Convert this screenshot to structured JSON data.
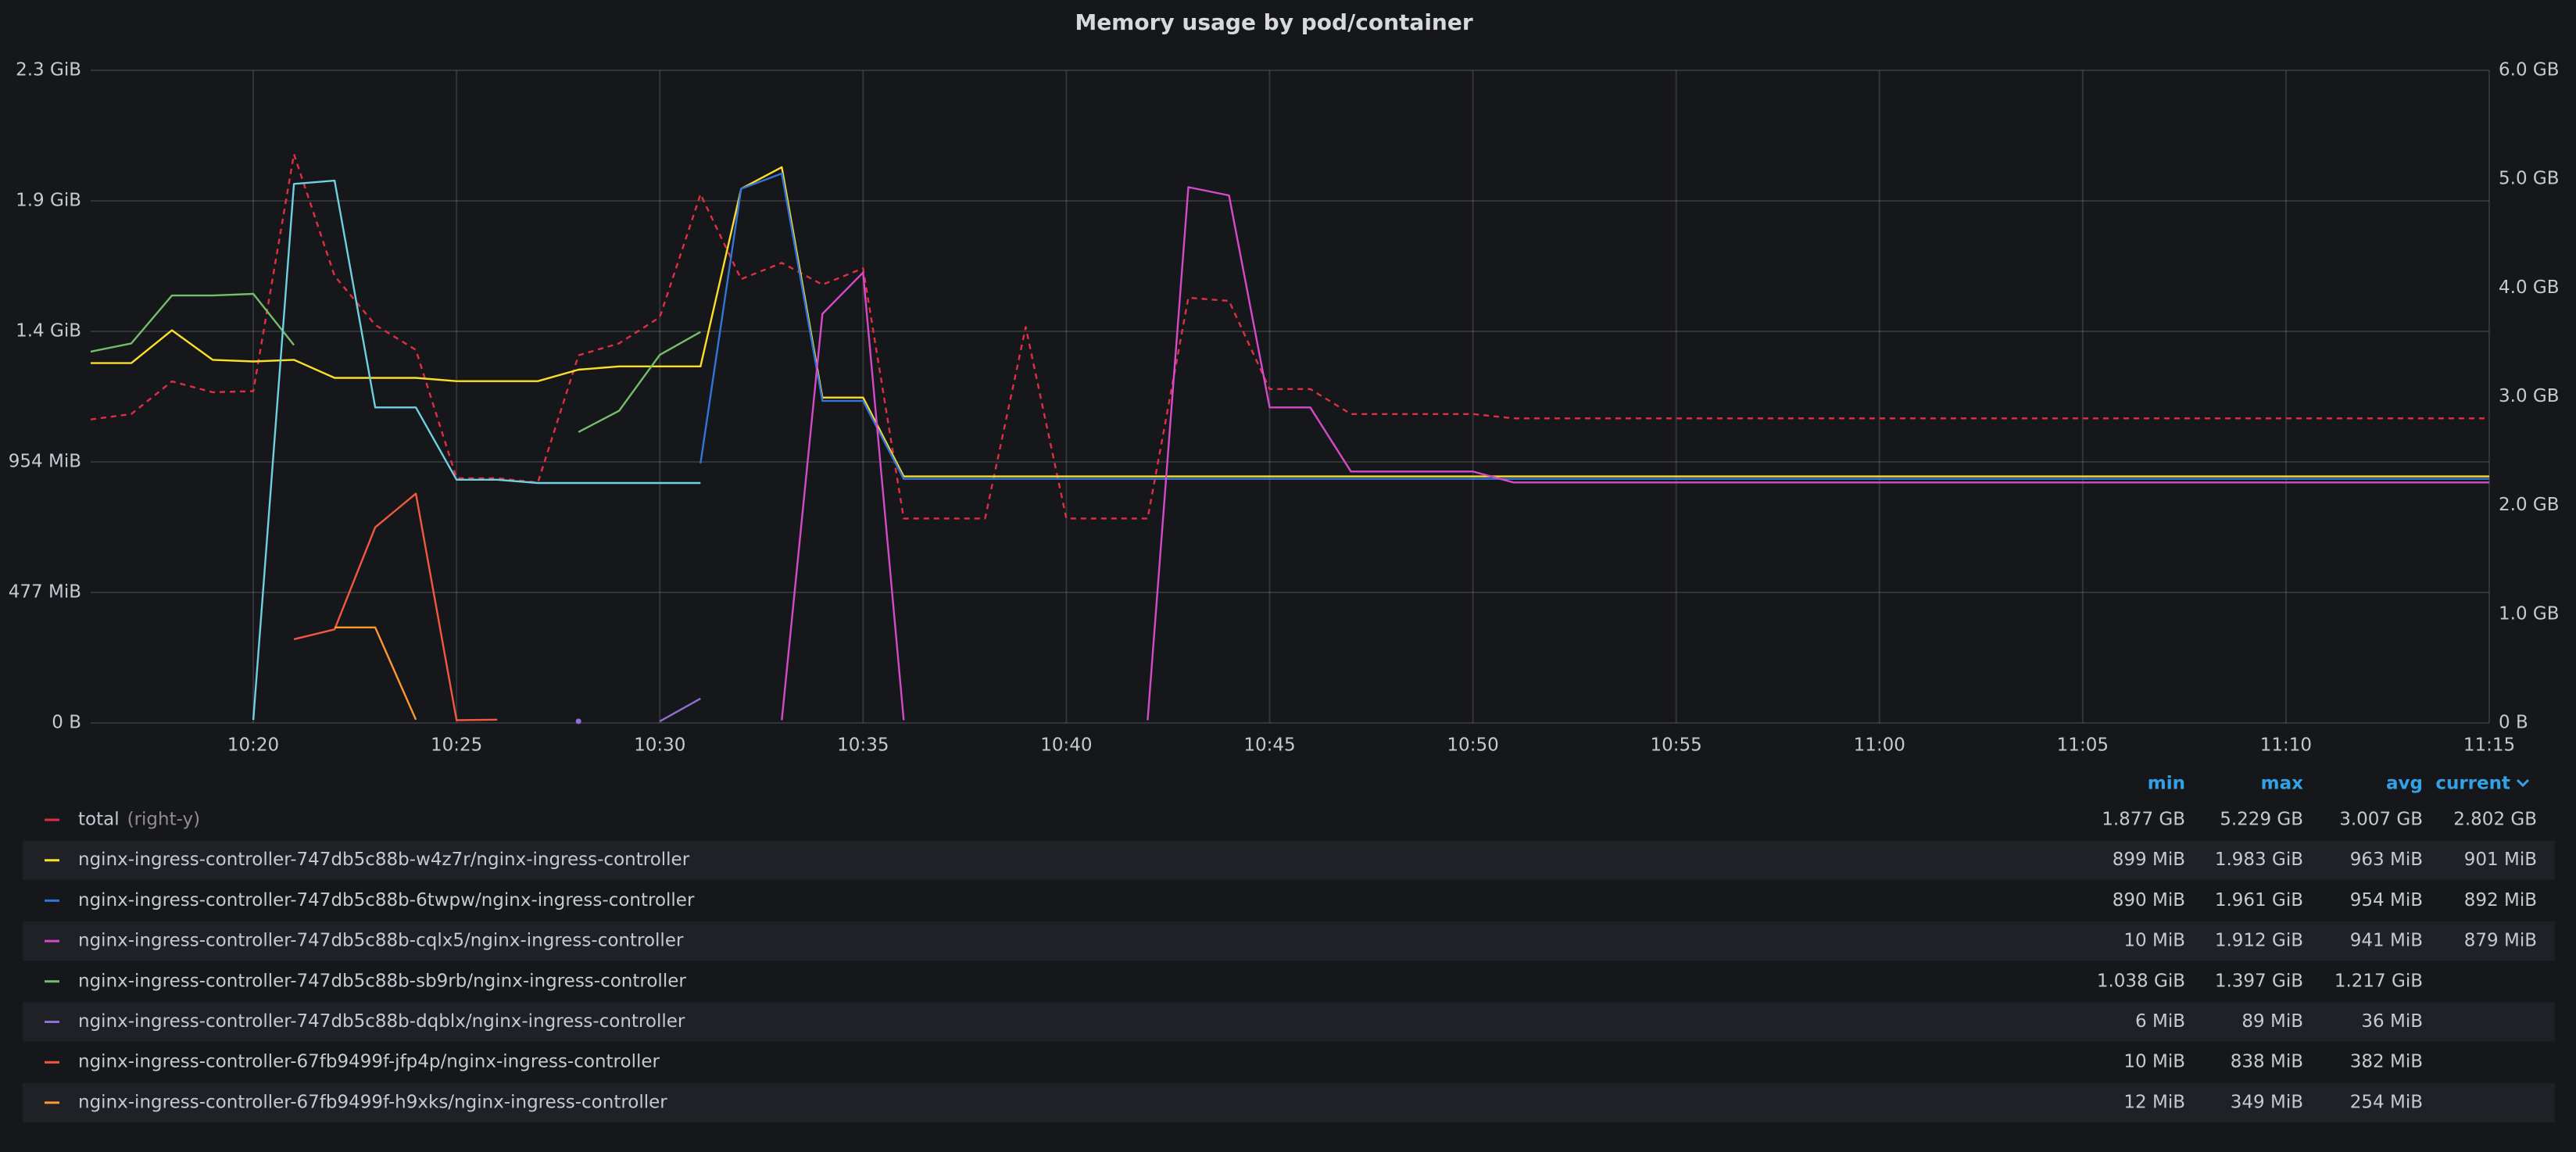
{
  "chart_data": {
    "type": "line",
    "title": "Memory usage by pod/container",
    "x": [
      "10:16",
      "10:17",
      "10:18",
      "10:19",
      "10:20",
      "10:21",
      "10:22",
      "10:23",
      "10:24",
      "10:25",
      "10:26",
      "10:27",
      "10:28",
      "10:29",
      "10:30",
      "10:31",
      "10:32",
      "10:33",
      "10:34",
      "10:35",
      "10:36",
      "10:37",
      "10:38",
      "10:39",
      "10:40",
      "10:41",
      "10:42",
      "10:43",
      "10:44",
      "10:45",
      "10:46",
      "10:47",
      "10:48",
      "10:49",
      "10:50",
      "10:51",
      "10:52",
      "10:53",
      "10:54",
      "10:55",
      "10:56",
      "10:57",
      "10:58",
      "10:59",
      "11:00",
      "11:01",
      "11:02",
      "11:03",
      "11:04",
      "11:05",
      "11:06",
      "11:07",
      "11:08",
      "11:09",
      "11:10",
      "11:11",
      "11:12",
      "11:13",
      "11:14",
      "11:15"
    ],
    "xlim": [
      "10:16",
      "11:15"
    ],
    "xticks": [
      "10:20",
      "10:25",
      "10:30",
      "10:35",
      "10:40",
      "10:45",
      "10:50",
      "10:55",
      "11:00",
      "11:05",
      "11:10",
      "11:15"
    ],
    "ylim": [
      0,
      2385
    ],
    "yticks": [
      {
        "value": 0,
        "label": "0 B"
      },
      {
        "value": 477,
        "label": "477 MiB"
      },
      {
        "value": 954,
        "label": "954 MiB"
      },
      {
        "value": 1431,
        "label": "1.4 GiB"
      },
      {
        "value": 1908,
        "label": "1.9 GiB"
      },
      {
        "value": 2385,
        "label": "2.3 GiB"
      }
    ],
    "y2lim": [
      0,
      6
    ],
    "y2ticks": [
      {
        "value": 0,
        "label": "0 B"
      },
      {
        "value": 1,
        "label": "1.0 GB"
      },
      {
        "value": 2,
        "label": "2.0 GB"
      },
      {
        "value": 3,
        "label": "3.0 GB"
      },
      {
        "value": 4,
        "label": "4.0 GB"
      },
      {
        "value": 5,
        "label": "5.0 GB"
      },
      {
        "value": 6,
        "label": "6.0 GB"
      }
    ],
    "grid": true,
    "legend_columns": [
      "min",
      "max",
      "avg",
      "current"
    ],
    "series": [
      {
        "name": "total",
        "axis_label": "(right-y)",
        "axis": "y2",
        "color": "#e02f44",
        "dash": true,
        "values": [
          2.79,
          2.84,
          3.14,
          3.04,
          3.05,
          5.23,
          4.11,
          3.66,
          3.43,
          2.25,
          2.25,
          2.21,
          3.38,
          3.49,
          3.73,
          4.86,
          4.08,
          4.23,
          4.03,
          4.18,
          1.88,
          1.88,
          1.88,
          3.64,
          1.88,
          1.88,
          1.88,
          3.91,
          3.88,
          3.07,
          3.07,
          2.84,
          2.84,
          2.84,
          2.84,
          2.8,
          2.8,
          2.8,
          2.8,
          2.8,
          2.8,
          2.8,
          2.8,
          2.8,
          2.8,
          2.8,
          2.8,
          2.8,
          2.8,
          2.8,
          2.8,
          2.8,
          2.8,
          2.8,
          2.8,
          2.8,
          2.8,
          2.8,
          2.8,
          2.8
        ],
        "stats": [
          "1.877 GB",
          "5.229 GB",
          "3.007 GB",
          "2.802 GB"
        ]
      },
      {
        "name": "nginx-ingress-controller-747db5c88b-w4z7r/nginx-ingress-controller",
        "color": "#fade2a",
        "values": [
          1315,
          1315,
          1435,
          1327,
          1321,
          1327,
          1261,
          1261,
          1261,
          1249,
          1249,
          1249,
          1291,
          1303,
          1303,
          1303,
          1952,
          2031,
          1189,
          1189,
          901,
          901,
          901,
          901,
          901,
          901,
          901,
          901,
          901,
          901,
          901,
          901,
          901,
          901,
          901,
          901,
          901,
          901,
          901,
          901,
          901,
          901,
          901,
          901,
          901,
          901,
          901,
          901,
          901,
          901,
          901,
          901,
          901,
          901,
          901,
          901,
          901,
          901,
          901,
          901
        ],
        "stats": [
          "899 MiB",
          "1.983 GiB",
          "963 MiB",
          "901 MiB"
        ]
      },
      {
        "name": "nginx-ingress-controller-747db5c88b-6twpw/nginx-ingress-controller",
        "color": "#3274d9",
        "values": [
          null,
          null,
          null,
          null,
          null,
          null,
          null,
          null,
          null,
          null,
          null,
          null,
          null,
          null,
          null,
          949,
          1952,
          2008,
          1177,
          1177,
          892,
          892,
          892,
          892,
          892,
          892,
          892,
          892,
          892,
          892,
          892,
          892,
          892,
          892,
          892,
          892,
          892,
          892,
          892,
          892,
          892,
          892,
          892,
          892,
          892,
          892,
          892,
          892,
          892,
          892,
          892,
          892,
          892,
          892,
          892,
          892,
          892,
          892,
          892,
          892
        ],
        "stats": [
          "890 MiB",
          "1.961 GiB",
          "954 MiB",
          "892 MiB"
        ]
      },
      {
        "name": "nginx-ingress-controller-747db5c88b-cqlx5/nginx-ingress-controller",
        "color": "#d44ac8",
        "values": [
          null,
          null,
          null,
          null,
          null,
          null,
          null,
          null,
          null,
          null,
          null,
          null,
          null,
          null,
          null,
          null,
          null,
          10,
          1495,
          1646,
          10,
          null,
          null,
          null,
          null,
          null,
          10,
          1958,
          1928,
          1153,
          1153,
          919,
          919,
          919,
          919,
          879,
          879,
          879,
          879,
          879,
          879,
          879,
          879,
          879,
          879,
          879,
          879,
          879,
          879,
          879,
          879,
          879,
          879,
          879,
          879,
          879,
          879,
          879,
          879,
          879
        ],
        "stats": [
          "10 MiB",
          "1.912 GiB",
          "941 MiB",
          "879 MiB"
        ]
      },
      {
        "name": "nginx-ingress-controller-747db5c88b-sb9rb/nginx-ingress-controller",
        "color": "#73bf69",
        "values": [
          1357,
          1387,
          1562,
          1562,
          1568,
          1381,
          null,
          null,
          null,
          null,
          null,
          null,
          1063,
          1141,
          1345,
          1429,
          null,
          null,
          null,
          null,
          null,
          null,
          null,
          null,
          null,
          null,
          null,
          null,
          null,
          null,
          null,
          null,
          null,
          null,
          null,
          null,
          null,
          null,
          null,
          null,
          null,
          null,
          null,
          null,
          null,
          null,
          null,
          null,
          null,
          null,
          null,
          null,
          null,
          null,
          null,
          null,
          null,
          null,
          null,
          null
        ],
        "stats": [
          "1.038 GiB",
          "1.397 GiB",
          "1.217 GiB"
        ]
      },
      {
        "name": "nginx-ingress-controller-747db5c88b-dqblx/nginx-ingress-controller",
        "color": "#8f6fd6",
        "values": [
          null,
          null,
          null,
          null,
          null,
          null,
          null,
          null,
          null,
          null,
          null,
          null,
          6,
          null,
          6,
          89,
          null,
          null,
          null,
          null,
          null,
          null,
          null,
          null,
          null,
          null,
          null,
          null,
          null,
          null,
          null,
          null,
          null,
          null,
          null,
          null,
          null,
          null,
          null,
          null,
          null,
          null,
          null,
          null,
          null,
          null,
          null,
          null,
          null,
          null,
          null,
          null,
          null,
          null,
          null,
          null,
          null,
          null,
          null,
          null
        ],
        "stats": [
          "6 MiB",
          "89 MiB",
          "36 MiB"
        ]
      },
      {
        "name": "nginx-ingress-controller-67fb9499f-jfp4p/nginx-ingress-controller",
        "color": "#f2583e",
        "values": [
          null,
          null,
          null,
          null,
          null,
          306,
          342,
          715,
          838,
          10,
          12,
          null,
          null,
          null,
          null,
          null,
          null,
          null,
          null,
          null,
          null,
          null,
          null,
          null,
          null,
          null,
          null,
          null,
          null,
          null,
          null,
          null,
          null,
          null,
          null,
          null,
          null,
          null,
          null,
          null,
          null,
          null,
          null,
          null,
          null,
          null,
          null,
          null,
          null,
          null,
          null,
          null,
          null,
          null,
          null,
          null,
          null,
          null,
          null,
          null
        ],
        "stats": [
          "10 MiB",
          "838 MiB",
          "382 MiB"
        ]
      },
      {
        "name": "nginx-ingress-controller-67fb9499f-h9xks/nginx-ingress-controller",
        "color": "#ff9830",
        "values": [
          null,
          null,
          null,
          null,
          null,
          null,
          349,
          349,
          12,
          null,
          null,
          null,
          null,
          null,
          null,
          null,
          null,
          null,
          null,
          null,
          null,
          null,
          null,
          null,
          null,
          null,
          null,
          null,
          null,
          null,
          null,
          null,
          null,
          null,
          null,
          null,
          null,
          null,
          null,
          null,
          null,
          null,
          null,
          null,
          null,
          null,
          null,
          null,
          null,
          null,
          null,
          null,
          null,
          null,
          null,
          null,
          null,
          null,
          null,
          null
        ],
        "stats": [
          "12 MiB",
          "349 MiB",
          "254 MiB"
        ]
      },
      {
        "color": "#6ed0e0",
        "values": [
          null,
          null,
          null,
          null,
          11,
          1970,
          1982,
          1153,
          1153,
          889,
          889,
          877,
          877,
          877,
          877,
          877,
          null,
          null,
          null,
          null,
          null,
          null,
          null,
          null,
          null,
          null,
          null,
          null,
          null,
          null,
          null,
          null,
          null,
          null,
          null,
          null,
          null,
          null,
          null,
          null,
          null,
          null,
          null,
          null,
          null,
          null,
          null,
          null,
          null,
          null,
          null,
          null,
          null,
          null,
          null,
          null,
          null,
          null,
          null,
          null
        ]
      }
    ]
  }
}
